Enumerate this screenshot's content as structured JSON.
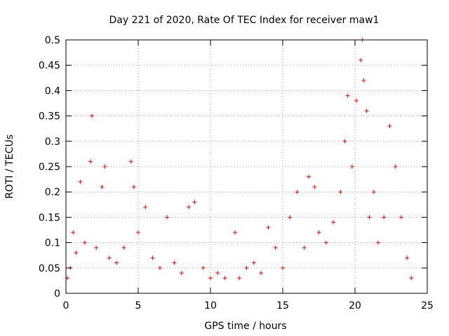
{
  "chart_data": {
    "type": "scatter",
    "title": "Day 221 of 2020, Rate Of TEC Index for receiver maw1",
    "xlabel": "GPS time / hours",
    "ylabel": "ROTI / TECUs",
    "xlim": [
      0,
      25
    ],
    "ylim": [
      0,
      0.5
    ],
    "xticks": [
      0,
      5,
      10,
      15,
      20,
      25
    ],
    "yticks": [
      0,
      0.05,
      0.1,
      0.15,
      0.2,
      0.25,
      0.3,
      0.35,
      0.4,
      0.45,
      0.5
    ],
    "grid": true,
    "legend": "none",
    "marker": "plus",
    "series": [
      {
        "color": "#ff0000",
        "x": [
          0.1,
          0.3,
          0.5,
          0.7,
          1.0,
          1.3,
          1.7,
          1.8,
          2.1,
          2.5,
          2.7,
          3.0,
          3.5,
          4.0,
          4.5,
          4.7,
          5.0,
          5.5,
          6.0,
          6.5,
          7.0,
          7.5,
          8.0,
          8.5,
          8.9,
          9.5,
          10.0,
          10.5,
          11.0,
          11.7,
          12.0,
          12.5,
          13.0,
          13.5,
          14.0,
          14.5,
          15.0,
          15.5,
          16.0,
          16.5,
          16.8,
          17.2,
          17.5,
          18.0,
          18.5,
          19.0,
          19.3,
          19.5,
          19.8,
          20.1,
          20.4,
          20.5,
          20.6,
          20.8,
          21.0,
          21.3,
          21.6,
          22.0,
          22.4,
          22.8,
          23.2,
          23.6,
          23.9
        ],
        "y": [
          0.03,
          0.05,
          0.12,
          0.08,
          0.22,
          0.1,
          0.26,
          0.35,
          0.09,
          0.21,
          0.25,
          0.07,
          0.06,
          0.09,
          0.26,
          0.21,
          0.12,
          0.17,
          0.07,
          0.05,
          0.15,
          0.06,
          0.04,
          0.17,
          0.18,
          0.05,
          0.03,
          0.04,
          0.03,
          0.12,
          0.03,
          0.05,
          0.06,
          0.04,
          0.13,
          0.09,
          0.05,
          0.15,
          0.2,
          0.09,
          0.23,
          0.21,
          0.12,
          0.1,
          0.14,
          0.2,
          0.3,
          0.39,
          0.25,
          0.38,
          0.46,
          0.5,
          0.42,
          0.36,
          0.15,
          0.2,
          0.1,
          0.15,
          0.33,
          0.25,
          0.15,
          0.07,
          0.03
        ]
      }
    ]
  }
}
